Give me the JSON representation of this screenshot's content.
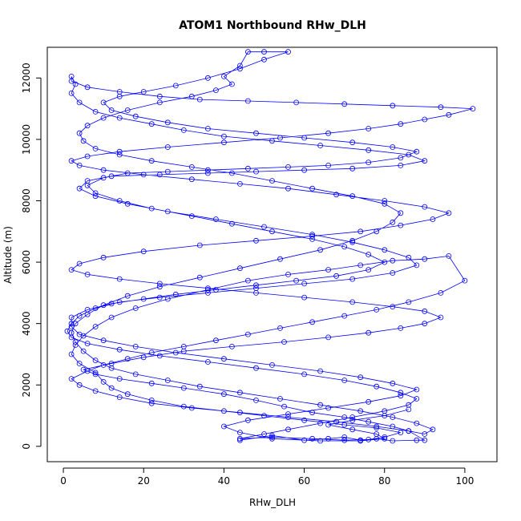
{
  "chart_data": {
    "type": "line",
    "title": "ATOM1 Northbound RHw_DLH",
    "xlabel": "RHw_DLH",
    "ylabel": "Altitude (m)",
    "xlim": [
      -4,
      108
    ],
    "ylim": [
      -500,
      13000
    ],
    "x_ticks": [
      0,
      20,
      40,
      60,
      80,
      100
    ],
    "y_ticks": [
      0,
      2000,
      4000,
      6000,
      8000,
      10000,
      12000
    ],
    "x_tick_labels": [
      "0",
      "20",
      "40",
      "60",
      "80",
      "100"
    ],
    "y_tick_labels": [
      "0",
      "2000",
      "4000",
      "6000",
      "8000",
      "10000",
      "12000"
    ],
    "grid": false,
    "legend": "none",
    "series": [
      {
        "color": "#0000ff",
        "marker": "open-circle",
        "note_points_estimated": true,
        "points": [
          [
            44,
            200
          ],
          [
            52,
            350
          ],
          [
            60,
            200
          ],
          [
            66,
            250
          ],
          [
            70,
            300
          ],
          [
            74,
            200
          ],
          [
            78,
            250
          ],
          [
            82,
            180
          ],
          [
            88,
            200
          ],
          [
            90,
            200
          ],
          [
            86,
            500
          ],
          [
            82,
            650
          ],
          [
            76,
            800
          ],
          [
            70,
            950
          ],
          [
            62,
            1100
          ],
          [
            55,
            1300
          ],
          [
            48,
            1500
          ],
          [
            40,
            1700
          ],
          [
            30,
            1900
          ],
          [
            22,
            2050
          ],
          [
            14,
            2200
          ],
          [
            8,
            2350
          ],
          [
            5,
            2500
          ],
          [
            12,
            2700
          ],
          [
            20,
            2900
          ],
          [
            30,
            3100
          ],
          [
            42,
            3250
          ],
          [
            55,
            3400
          ],
          [
            66,
            3550
          ],
          [
            76,
            3700
          ],
          [
            84,
            3850
          ],
          [
            90,
            4000
          ],
          [
            94,
            4200
          ],
          [
            90,
            4400
          ],
          [
            82,
            4550
          ],
          [
            72,
            4700
          ],
          [
            60,
            4850
          ],
          [
            48,
            5000
          ],
          [
            36,
            5150
          ],
          [
            24,
            5300
          ],
          [
            14,
            5450
          ],
          [
            6,
            5600
          ],
          [
            2,
            5750
          ],
          [
            4,
            5950
          ],
          [
            10,
            6150
          ],
          [
            20,
            6350
          ],
          [
            34,
            6550
          ],
          [
            48,
            6700
          ],
          [
            62,
            6850
          ],
          [
            74,
            7000
          ],
          [
            84,
            7200
          ],
          [
            92,
            7400
          ],
          [
            96,
            7600
          ],
          [
            90,
            7800
          ],
          [
            80,
            8000
          ],
          [
            68,
            8200
          ],
          [
            56,
            8400
          ],
          [
            44,
            8550
          ],
          [
            32,
            8700
          ],
          [
            20,
            8850
          ],
          [
            10,
            9000
          ],
          [
            4,
            9150
          ],
          [
            2,
            9300
          ],
          [
            6,
            9450
          ],
          [
            14,
            9600
          ],
          [
            26,
            9750
          ],
          [
            40,
            9900
          ],
          [
            54,
            10050
          ],
          [
            66,
            10200
          ],
          [
            76,
            10350
          ],
          [
            84,
            10500
          ],
          [
            90,
            10650
          ],
          [
            96,
            10800
          ],
          [
            102,
            11000
          ],
          [
            94,
            11050
          ],
          [
            82,
            11100
          ],
          [
            70,
            11150
          ],
          [
            58,
            11200
          ],
          [
            46,
            11250
          ],
          [
            34,
            11300
          ],
          [
            24,
            11400
          ],
          [
            14,
            11550
          ],
          [
            6,
            11700
          ],
          [
            2,
            11900
          ],
          [
            2,
            12050
          ],
          [
            3,
            11800
          ],
          [
            2,
            11500
          ],
          [
            4,
            11200
          ],
          [
            8,
            10900
          ],
          [
            14,
            10700
          ],
          [
            22,
            10500
          ],
          [
            30,
            10300
          ],
          [
            40,
            10100
          ],
          [
            52,
            9950
          ],
          [
            64,
            9800
          ],
          [
            76,
            9650
          ],
          [
            86,
            9500
          ],
          [
            90,
            9300
          ],
          [
            84,
            9150
          ],
          [
            72,
            9050
          ],
          [
            60,
            9000
          ],
          [
            48,
            8950
          ],
          [
            36,
            8900
          ],
          [
            24,
            8850
          ],
          [
            12,
            8800
          ],
          [
            6,
            8650
          ],
          [
            4,
            8400
          ],
          [
            8,
            8150
          ],
          [
            16,
            7900
          ],
          [
            26,
            7650
          ],
          [
            38,
            7400
          ],
          [
            50,
            7150
          ],
          [
            62,
            6900
          ],
          [
            72,
            6650
          ],
          [
            80,
            6400
          ],
          [
            86,
            6150
          ],
          [
            88,
            5900
          ],
          [
            82,
            5650
          ],
          [
            72,
            5450
          ],
          [
            60,
            5300
          ],
          [
            48,
            5150
          ],
          [
            36,
            5000
          ],
          [
            24,
            4850
          ],
          [
            14,
            4700
          ],
          [
            8,
            4500
          ],
          [
            4,
            4250
          ],
          [
            2,
            4000
          ],
          [
            1,
            3750
          ],
          [
            2,
            3550
          ],
          [
            6,
            3350
          ],
          [
            14,
            3150
          ],
          [
            24,
            2950
          ],
          [
            36,
            2750
          ],
          [
            48,
            2550
          ],
          [
            60,
            2350
          ],
          [
            70,
            2150
          ],
          [
            78,
            1950
          ],
          [
            84,
            1750
          ],
          [
            88,
            1550
          ],
          [
            86,
            1350
          ],
          [
            80,
            1150
          ],
          [
            72,
            950
          ],
          [
            64,
            750
          ],
          [
            56,
            550
          ],
          [
            50,
            400
          ],
          [
            44,
            250
          ],
          [
            52,
            300
          ],
          [
            62,
            250
          ],
          [
            70,
            200
          ],
          [
            76,
            220
          ],
          [
            80,
            300
          ],
          [
            84,
            450
          ],
          [
            78,
            600
          ],
          [
            70,
            700
          ],
          [
            60,
            850
          ],
          [
            50,
            1000
          ],
          [
            40,
            1150
          ],
          [
            30,
            1300
          ],
          [
            22,
            1500
          ],
          [
            16,
            1700
          ],
          [
            12,
            1900
          ],
          [
            10,
            2100
          ],
          [
            8,
            2400
          ],
          [
            4,
            2700
          ],
          [
            2,
            3000
          ],
          [
            3,
            3300
          ],
          [
            5,
            3600
          ],
          [
            8,
            3900
          ],
          [
            12,
            4200
          ],
          [
            18,
            4500
          ],
          [
            26,
            4800
          ],
          [
            36,
            5100
          ],
          [
            46,
            5400
          ],
          [
            56,
            5600
          ],
          [
            66,
            5750
          ],
          [
            74,
            5900
          ],
          [
            82,
            6050
          ],
          [
            90,
            6100
          ],
          [
            96,
            6200
          ],
          [
            100,
            5400
          ],
          [
            94,
            5000
          ],
          [
            86,
            4700
          ],
          [
            78,
            4450
          ],
          [
            70,
            4250
          ],
          [
            62,
            4050
          ],
          [
            54,
            3850
          ],
          [
            46,
            3650
          ],
          [
            38,
            3450
          ],
          [
            30,
            3250
          ],
          [
            22,
            3050
          ],
          [
            16,
            2850
          ],
          [
            10,
            2650
          ],
          [
            6,
            2450
          ],
          [
            2,
            2200
          ],
          [
            4,
            2000
          ],
          [
            8,
            1800
          ],
          [
            14,
            1600
          ],
          [
            22,
            1400
          ],
          [
            32,
            1250
          ],
          [
            44,
            1100
          ],
          [
            56,
            950
          ],
          [
            68,
            800
          ],
          [
            78,
            650
          ],
          [
            86,
            500
          ],
          [
            90,
            400
          ],
          [
            92,
            550
          ],
          [
            88,
            750
          ],
          [
            82,
            950
          ],
          [
            74,
            1150
          ],
          [
            64,
            1350
          ],
          [
            54,
            1550
          ],
          [
            44,
            1750
          ],
          [
            34,
            1950
          ],
          [
            26,
            2150
          ],
          [
            18,
            2350
          ],
          [
            12,
            2550
          ],
          [
            8,
            2800
          ],
          [
            5,
            3100
          ],
          [
            3,
            3400
          ],
          [
            2,
            3700
          ],
          [
            3,
            4000
          ],
          [
            6,
            4300
          ],
          [
            10,
            4600
          ],
          [
            16,
            4900
          ],
          [
            24,
            5200
          ],
          [
            34,
            5500
          ],
          [
            44,
            5800
          ],
          [
            54,
            6100
          ],
          [
            64,
            6400
          ],
          [
            72,
            6700
          ],
          [
            78,
            7000
          ],
          [
            82,
            7300
          ],
          [
            84,
            7600
          ],
          [
            80,
            7900
          ],
          [
            72,
            8150
          ],
          [
            62,
            8400
          ],
          [
            52,
            8650
          ],
          [
            42,
            8900
          ],
          [
            32,
            9100
          ],
          [
            22,
            9300
          ],
          [
            14,
            9500
          ],
          [
            8,
            9700
          ],
          [
            5,
            9950
          ],
          [
            4,
            10200
          ],
          [
            6,
            10450
          ],
          [
            10,
            10700
          ],
          [
            16,
            10950
          ],
          [
            24,
            11200
          ],
          [
            32,
            11400
          ],
          [
            38,
            11600
          ],
          [
            42,
            11800
          ],
          [
            40,
            12050
          ],
          [
            44,
            12400
          ],
          [
            46,
            12850
          ],
          [
            50,
            12850
          ],
          [
            56,
            12850
          ],
          [
            50,
            12600
          ],
          [
            44,
            12300
          ],
          [
            36,
            12000
          ],
          [
            28,
            11750
          ],
          [
            20,
            11550
          ],
          [
            14,
            11400
          ],
          [
            10,
            11200
          ],
          [
            12,
            10950
          ],
          [
            18,
            10750
          ],
          [
            26,
            10550
          ],
          [
            36,
            10350
          ],
          [
            48,
            10200
          ],
          [
            60,
            10050
          ],
          [
            72,
            9900
          ],
          [
            82,
            9750
          ],
          [
            88,
            9600
          ],
          [
            84,
            9400
          ],
          [
            76,
            9250
          ],
          [
            66,
            9150
          ],
          [
            56,
            9100
          ],
          [
            46,
            9050
          ],
          [
            36,
            9000
          ],
          [
            26,
            8950
          ],
          [
            16,
            8900
          ],
          [
            10,
            8750
          ],
          [
            6,
            8500
          ],
          [
            8,
            8250
          ],
          [
            14,
            8000
          ],
          [
            22,
            7750
          ],
          [
            32,
            7500
          ],
          [
            42,
            7250
          ],
          [
            52,
            7000
          ],
          [
            62,
            6750
          ],
          [
            70,
            6500
          ],
          [
            76,
            6250
          ],
          [
            80,
            6000
          ],
          [
            76,
            5750
          ],
          [
            68,
            5550
          ],
          [
            58,
            5400
          ],
          [
            48,
            5250
          ],
          [
            38,
            5100
          ],
          [
            28,
            4950
          ],
          [
            20,
            4800
          ],
          [
            12,
            4650
          ],
          [
            6,
            4450
          ],
          [
            2,
            4200
          ],
          [
            2,
            3900
          ],
          [
            4,
            3650
          ],
          [
            10,
            3450
          ],
          [
            18,
            3250
          ],
          [
            28,
            3050
          ],
          [
            40,
            2850
          ],
          [
            52,
            2650
          ],
          [
            64,
            2450
          ],
          [
            74,
            2250
          ],
          [
            82,
            2050
          ],
          [
            88,
            1850
          ],
          [
            84,
            1650
          ],
          [
            76,
            1450
          ],
          [
            66,
            1250
          ],
          [
            56,
            1050
          ],
          [
            46,
            850
          ],
          [
            40,
            650
          ],
          [
            44,
            450
          ],
          [
            52,
            250
          ],
          [
            64,
            180
          ],
          [
            74,
            180
          ],
          [
            80,
            250
          ],
          [
            78,
            400
          ],
          [
            72,
            550
          ],
          [
            66,
            700
          ],
          [
            72,
            850
          ],
          [
            80,
            1000
          ],
          [
            86,
            1200
          ]
        ]
      }
    ]
  }
}
